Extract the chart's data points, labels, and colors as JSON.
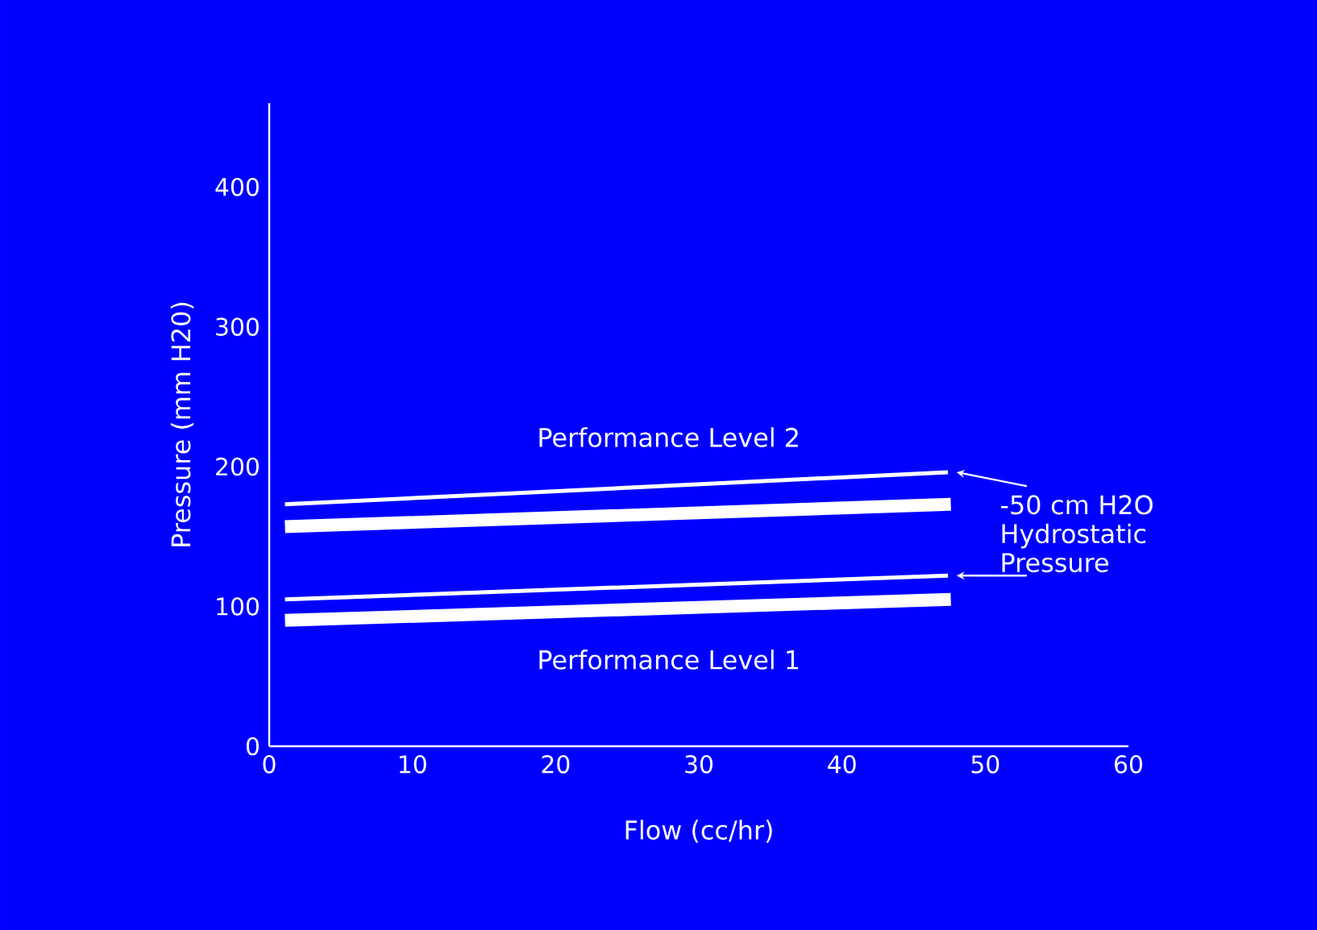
{
  "chart_data": {
    "type": "line",
    "xlabel": "Flow (cc/hr)",
    "ylabel": "Pressure (mm H20)",
    "xlim": [
      0,
      60
    ],
    "xticks": [
      0,
      10,
      20,
      30,
      40,
      50,
      60
    ],
    "ylim": [
      0,
      460
    ],
    "yticks": [
      0,
      100,
      200,
      300,
      400
    ],
    "series": [
      {
        "color": "#ffffff",
        "x": [
          1.1,
          47.4
        ],
        "values": [
          173,
          196
        ]
      },
      {
        "color": "#ffffff",
        "x": [
          1.1,
          47.6
        ],
        "values": [
          157,
          173
        ]
      },
      {
        "color": "#ffffff",
        "x": [
          1.1,
          47.4
        ],
        "values": [
          105,
          122
        ]
      },
      {
        "color": "#ffffff",
        "x": [
          1.1,
          47.6
        ],
        "values": [
          90,
          105
        ]
      }
    ],
    "annotations": [
      "Performance Level 2",
      "Performance Level 1",
      "-50 cm H2O Hydrostatic Pressure"
    ],
    "grid": false,
    "marker": "none",
    "line_style": "solid"
  }
}
